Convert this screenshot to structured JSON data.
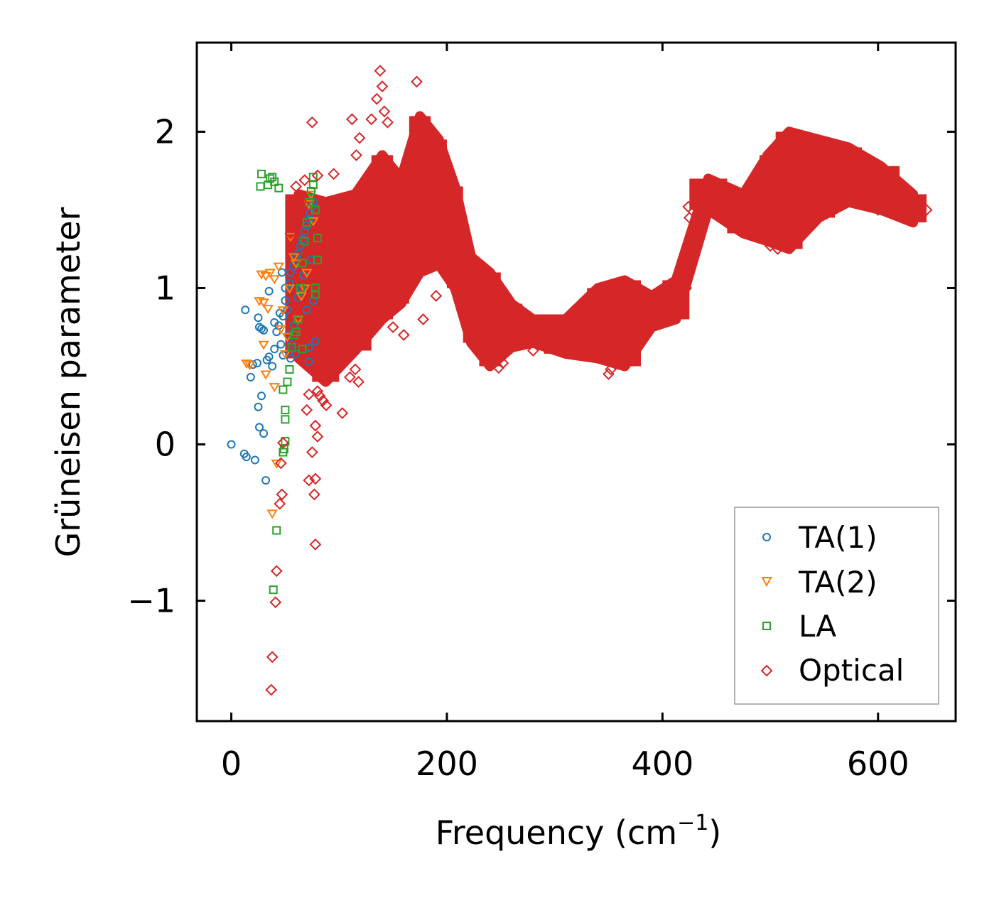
{
  "chart_data": {
    "type": "scatter",
    "title": "",
    "xlabel": "Frequency (cm",
    "xlabel_sup": "−1",
    "xlabel_close": ")",
    "ylabel": "Grüneisen parameter",
    "xlim": [
      -32,
      672
    ],
    "ylim": [
      -1.77,
      2.57
    ],
    "xticks": [
      0,
      200,
      400,
      600
    ],
    "xtick_labels": [
      "0",
      "200",
      "400",
      "600"
    ],
    "yticks": [
      -1,
      0,
      1,
      2
    ],
    "ytick_labels": [
      "−1",
      "0",
      "1",
      "2"
    ],
    "grid": false,
    "legend_position": "lower-right",
    "series": [
      {
        "name": "TA(1)",
        "color": "#1f77b4",
        "marker": "circle",
        "points": [
          [
            0,
            0.0
          ],
          [
            12,
            -0.06
          ],
          [
            14,
            -0.08
          ],
          [
            22,
            -0.1
          ],
          [
            32,
            -0.23
          ],
          [
            30,
            0.07
          ],
          [
            26,
            0.11
          ],
          [
            28,
            0.31
          ],
          [
            25,
            0.24
          ],
          [
            18,
            0.43
          ],
          [
            20,
            0.51
          ],
          [
            24,
            0.52
          ],
          [
            26,
            0.75
          ],
          [
            28,
            0.74
          ],
          [
            30,
            0.73
          ],
          [
            13,
            0.86
          ],
          [
            25,
            0.81
          ],
          [
            33,
            0.54
          ],
          [
            35,
            0.56
          ],
          [
            38,
            0.5
          ],
          [
            40,
            0.61
          ],
          [
            42,
            0.72
          ],
          [
            44,
            0.76
          ],
          [
            46,
            0.64
          ],
          [
            48,
            0.82
          ],
          [
            50,
            0.92
          ],
          [
            52,
            0.86
          ],
          [
            54,
            1.03
          ],
          [
            55,
            1.1
          ],
          [
            58,
            1.14
          ],
          [
            60,
            1.2
          ],
          [
            62,
            1.22
          ],
          [
            64,
            1.27
          ],
          [
            66,
            1.31
          ],
          [
            68,
            1.36
          ],
          [
            70,
            1.4
          ],
          [
            72,
            1.44
          ],
          [
            73,
            1.48
          ],
          [
            75,
            1.52
          ],
          [
            76,
            1.55
          ],
          [
            35,
            0.98
          ],
          [
            40,
            0.78
          ],
          [
            45,
            0.84
          ],
          [
            47,
            1.1
          ],
          [
            50,
            1.0
          ],
          [
            53,
            0.7
          ],
          [
            56,
            0.64
          ],
          [
            58,
            0.76
          ],
          [
            62,
            0.94
          ],
          [
            65,
            1.0
          ],
          [
            67,
            1.08
          ],
          [
            70,
            0.86
          ],
          [
            72,
            0.62
          ],
          [
            74,
            1.18
          ],
          [
            76,
            0.92
          ],
          [
            78,
            0.66
          ],
          [
            72,
            0.53
          ],
          [
            60,
            0.58
          ],
          [
            55,
            0.55
          ],
          [
            48,
            0.57
          ]
        ]
      },
      {
        "name": "TA(2)",
        "color": "#ff7f0e",
        "marker": "triangle",
        "points": [
          [
            28,
            1.09
          ],
          [
            32,
            1.08
          ],
          [
            36,
            1.1
          ],
          [
            40,
            1.06
          ],
          [
            44,
            1.14
          ],
          [
            34,
            0.87
          ],
          [
            30,
            0.91
          ],
          [
            26,
            0.92
          ],
          [
            14,
            0.52
          ],
          [
            17,
            0.51
          ],
          [
            30,
            0.64
          ],
          [
            32,
            0.45
          ],
          [
            40,
            0.37
          ],
          [
            38,
            -0.44
          ],
          [
            42,
            -0.12
          ],
          [
            50,
            0.58
          ],
          [
            52,
            0.69
          ],
          [
            54,
            1.0
          ],
          [
            55,
            1.33
          ],
          [
            58,
            1.2
          ],
          [
            60,
            1.16
          ],
          [
            62,
            0.8
          ],
          [
            65,
            0.95
          ],
          [
            68,
            1.0
          ],
          [
            70,
            1.1
          ],
          [
            72,
            1.54
          ],
          [
            74,
            1.6
          ],
          [
            76,
            1.43
          ],
          [
            46,
            0.74
          ],
          [
            48,
            0.86
          ]
        ]
      },
      {
        "name": "LA",
        "color": "#2ca02c",
        "marker": "square",
        "points": [
          [
            28,
            1.73
          ],
          [
            27,
            1.65
          ],
          [
            34,
            1.66
          ],
          [
            36,
            1.7
          ],
          [
            38,
            1.71
          ],
          [
            40,
            1.68
          ],
          [
            44,
            1.64
          ],
          [
            42,
            -0.55
          ],
          [
            39,
            -0.93
          ],
          [
            48,
            0.35
          ],
          [
            50,
            0.16
          ],
          [
            50,
            0.22
          ],
          [
            50,
            0.02
          ],
          [
            49,
            -0.03
          ],
          [
            48,
            -0.05
          ],
          [
            52,
            0.4
          ],
          [
            54,
            0.48
          ],
          [
            56,
            0.62
          ],
          [
            58,
            0.7
          ],
          [
            60,
            0.72
          ],
          [
            62,
            0.8
          ],
          [
            64,
            1.0
          ],
          [
            66,
            1.16
          ],
          [
            68,
            1.3
          ],
          [
            70,
            1.42
          ],
          [
            72,
            1.55
          ],
          [
            74,
            1.62
          ],
          [
            76,
            1.66
          ],
          [
            76,
            1.71
          ],
          [
            78,
            1.5
          ],
          [
            78,
            1.0
          ],
          [
            78,
            0.96
          ],
          [
            80,
            1.32
          ],
          [
            80,
            1.18
          ],
          [
            66,
            0.61
          ]
        ]
      },
      {
        "name": "Optical",
        "color": "#d62728",
        "marker": "diamond",
        "bands": [
          {
            "x0": 50,
            "x1": 75,
            "lo": 0.55,
            "hi": 1.6
          },
          {
            "x0": 75,
            "x1": 100,
            "lo": 0.4,
            "hi": 1.55
          },
          {
            "x0": 100,
            "x1": 130,
            "lo": 0.6,
            "hi": 1.6
          },
          {
            "x0": 130,
            "x1": 150,
            "lo": 0.8,
            "hi": 1.85
          },
          {
            "x0": 150,
            "x1": 165,
            "lo": 0.9,
            "hi": 1.7
          },
          {
            "x0": 165,
            "x1": 185,
            "lo": 1.1,
            "hi": 2.1
          },
          {
            "x0": 185,
            "x1": 200,
            "lo": 1.15,
            "hi": 1.95
          },
          {
            "x0": 200,
            "x1": 215,
            "lo": 1.0,
            "hi": 1.65
          },
          {
            "x0": 215,
            "x1": 230,
            "lo": 0.65,
            "hi": 1.2
          },
          {
            "x0": 230,
            "x1": 250,
            "lo": 0.5,
            "hi": 1.1
          },
          {
            "x0": 250,
            "x1": 270,
            "lo": 0.62,
            "hi": 0.9
          },
          {
            "x0": 270,
            "x1": 290,
            "lo": 0.65,
            "hi": 0.8
          },
          {
            "x0": 290,
            "x1": 330,
            "lo": 0.58,
            "hi": 0.8
          },
          {
            "x0": 330,
            "x1": 350,
            "lo": 0.55,
            "hi": 1.0
          },
          {
            "x0": 350,
            "x1": 380,
            "lo": 0.5,
            "hi": 1.05
          },
          {
            "x0": 380,
            "x1": 400,
            "lo": 0.75,
            "hi": 0.95
          },
          {
            "x0": 400,
            "x1": 425,
            "lo": 0.8,
            "hi": 1.05
          },
          {
            "x0": 425,
            "x1": 460,
            "lo": 1.5,
            "hi": 1.7
          },
          {
            "x0": 460,
            "x1": 490,
            "lo": 1.35,
            "hi": 1.6
          },
          {
            "x0": 490,
            "x1": 505,
            "lo": 1.3,
            "hi": 1.85
          },
          {
            "x0": 505,
            "x1": 530,
            "lo": 1.25,
            "hi": 2.0
          },
          {
            "x0": 530,
            "x1": 560,
            "lo": 1.45,
            "hi": 1.95
          },
          {
            "x0": 560,
            "x1": 585,
            "lo": 1.55,
            "hi": 1.9
          },
          {
            "x0": 585,
            "x1": 620,
            "lo": 1.5,
            "hi": 1.78
          },
          {
            "x0": 620,
            "x1": 645,
            "lo": 1.42,
            "hi": 1.6
          }
        ],
        "points": [
          [
            138,
            2.39
          ],
          [
            140,
            2.29
          ],
          [
            172,
            2.32
          ],
          [
            135,
            2.21
          ],
          [
            142,
            2.13
          ],
          [
            145,
            2.06
          ],
          [
            130,
            2.08
          ],
          [
            112,
            2.08
          ],
          [
            75,
            2.06
          ],
          [
            119,
            1.96
          ],
          [
            116,
            1.85
          ],
          [
            95,
            1.73
          ],
          [
            80,
            1.72
          ],
          [
            68,
            1.69
          ],
          [
            60,
            1.65
          ],
          [
            65,
            1.55
          ],
          [
            58,
            1.5
          ],
          [
            56,
            1.42
          ],
          [
            55,
            1.35
          ],
          [
            80,
            0.34
          ],
          [
            82,
            0.31
          ],
          [
            85,
            0.28
          ],
          [
            88,
            0.25
          ],
          [
            103,
            0.2
          ],
          [
            110,
            0.43
          ],
          [
            115,
            0.48
          ],
          [
            118,
            0.4
          ],
          [
            78,
            0.12
          ],
          [
            80,
            0.05
          ],
          [
            75,
            -0.05
          ],
          [
            72,
            -0.23
          ],
          [
            78,
            -0.22
          ],
          [
            77,
            -0.32
          ],
          [
            46,
            -0.12
          ],
          [
            47,
            -0.32
          ],
          [
            45,
            -0.38
          ],
          [
            42,
            -0.81
          ],
          [
            41,
            -1.01
          ],
          [
            38,
            -1.36
          ],
          [
            37,
            -1.57
          ],
          [
            78,
            -0.64
          ],
          [
            48,
            0.01
          ],
          [
            70,
            0.22
          ],
          [
            72,
            0.32
          ],
          [
            90,
            0.5
          ],
          [
            420,
            1.05
          ],
          [
            418,
            0.96
          ],
          [
            422,
            1.0
          ],
          [
            425,
            1.45
          ],
          [
            424,
            1.52
          ],
          [
            640,
            1.46
          ],
          [
            645,
            1.5
          ],
          [
            600,
            1.5
          ],
          [
            560,
            1.62
          ],
          [
            507,
            1.25
          ],
          [
            500,
            1.27
          ],
          [
            540,
            1.48
          ],
          [
            350,
            0.45
          ],
          [
            352,
            0.48
          ],
          [
            248,
            0.49
          ],
          [
            252,
            0.52
          ],
          [
            280,
            0.6
          ],
          [
            200,
            1.1
          ],
          [
            205,
            1.2
          ],
          [
            190,
            0.95
          ],
          [
            178,
            0.8
          ],
          [
            160,
            0.7
          ],
          [
            150,
            0.75
          ],
          [
            125,
            0.7
          ]
        ]
      }
    ]
  }
}
